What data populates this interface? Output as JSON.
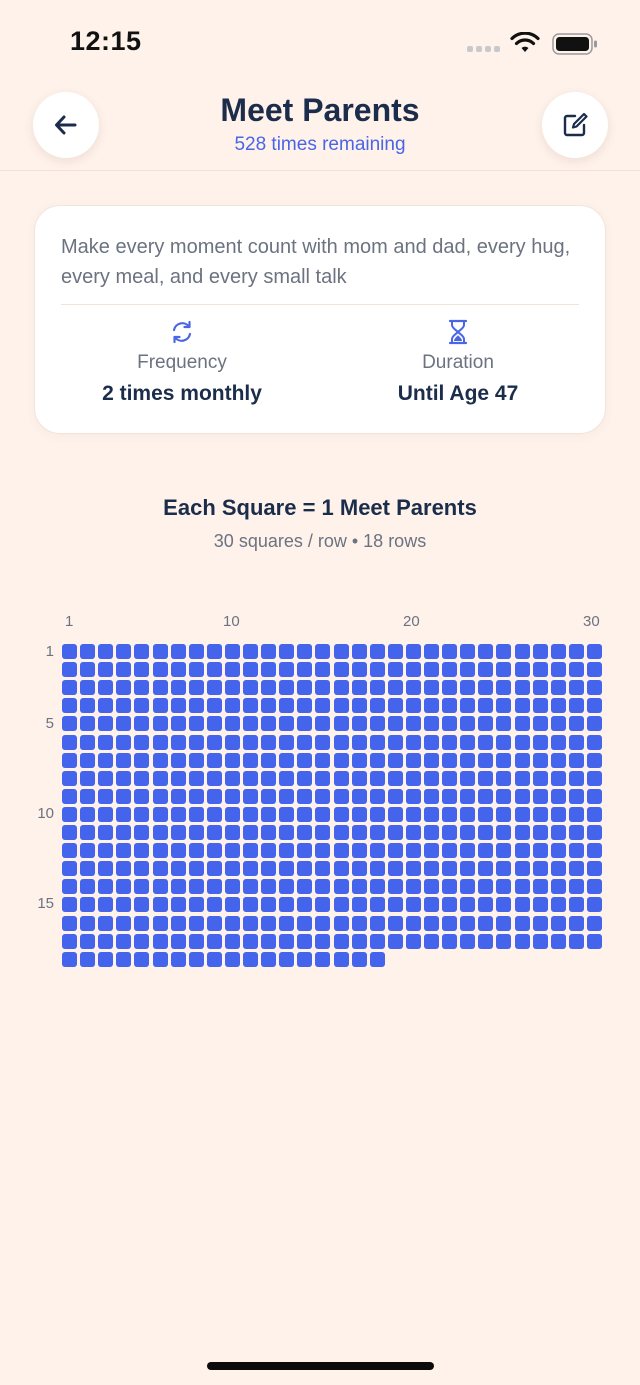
{
  "status_bar": {
    "time": "12:15"
  },
  "header": {
    "title": "Meet Parents",
    "subtitle": "528 times remaining",
    "back_icon": "arrow-left-icon",
    "edit_icon": "edit-icon"
  },
  "card": {
    "description": "Make every moment count with mom and dad, every hug, every meal, and every small talk",
    "frequency": {
      "icon": "refresh-icon",
      "label": "Frequency",
      "value": "2 times monthly"
    },
    "duration": {
      "icon": "hourglass-icon",
      "label": "Duration",
      "value": "Until Age 47"
    }
  },
  "grid": {
    "title": "Each Square = 1 Meet Parents",
    "subtitle": "30 squares / row • 18 rows",
    "total": 528,
    "columns": 30,
    "rows": 18,
    "column_labels": [
      "1",
      "10",
      "20",
      "30"
    ],
    "row_labels": [
      "1",
      "5",
      "10",
      "15"
    ],
    "square_color": "#4464EC"
  },
  "colors": {
    "background": "#FEF2EB",
    "accent": "#4A66E6",
    "text_primary": "#1B2D4A",
    "text_secondary": "#6B7280"
  }
}
